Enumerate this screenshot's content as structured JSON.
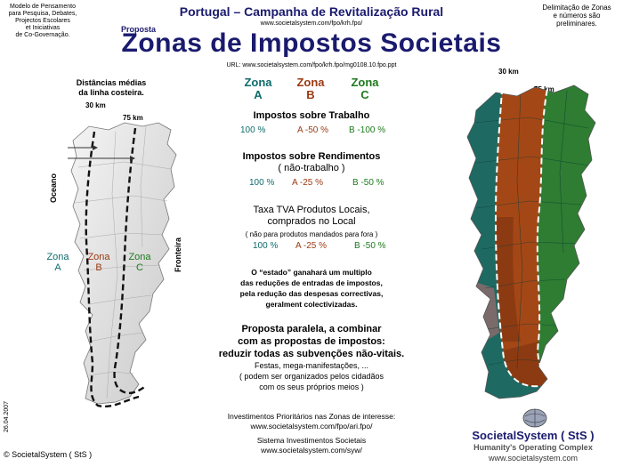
{
  "header": {
    "left_note": [
      "Modelo de Pensamento",
      "para Pesquisa, Debates,",
      "Projectos Escolares",
      "et Iniciativas",
      "de Co-Governação."
    ],
    "supertitle": "Portugal – Campanha de Revitalização Rural",
    "url_top": "www.societalsystem.com/fpo/krh.fpo/",
    "proposta": "Proposta",
    "title": "Zonas de Impostos Societais",
    "url_line": "URL: www.societalsystem.com/fpo/krh.fpo/mg0108.10.fpo.ppt",
    "right_note": [
      "Delimitação de Zonas",
      "e números são",
      "preliminares."
    ]
  },
  "left_map": {
    "caption": [
      "Distâncias médias",
      "da linha costeira."
    ],
    "km30": "30 km",
    "km75": "75 km",
    "ocean": "Oceano",
    "border": "Fronteira",
    "zones": [
      {
        "word": "Zona",
        "letter": "A"
      },
      {
        "word": "Zona",
        "letter": "B"
      },
      {
        "word": "Zona",
        "letter": "C"
      }
    ],
    "date": "26.04.2007"
  },
  "center": {
    "zone_headers": [
      {
        "word": "Zona",
        "letter": "A"
      },
      {
        "word": "Zona",
        "letter": "B"
      },
      {
        "word": "Zona",
        "letter": "C"
      }
    ],
    "sec1_title": "Impostos sobre Trabalho",
    "sec1_values": [
      "100 %",
      "A -50 %",
      "B -100 %"
    ],
    "sec2_title": [
      "Impostos sobre Rendimentos",
      "( não-trabalho )"
    ],
    "sec2_values": [
      "100 %",
      "A -25 %",
      "B -50 %"
    ],
    "sec3_title": [
      "Taxa TVA Produtos Locais,",
      "comprados no Local"
    ],
    "sec3_note": "( não para produtos mandados para fora )",
    "sec3_values": [
      "100 %",
      "A -25 %",
      "B -50 %"
    ],
    "estado": [
      "O “estado” ganahará um multiplo",
      "das reduções de entradas de impostos,",
      "pela redução das despesas correctivas,",
      "geralment colectivizadas."
    ],
    "proposal": [
      "Proposta paralela, a combinar",
      "com as propostas de impostos:",
      "reduzir todas as subvenções não-vitais."
    ],
    "proposal_sub": [
      "Festas, mega-manifestações, ...",
      "( podem ser organizados pelos cidadãos",
      "com os seus próprios meios )"
    ],
    "invest": [
      "Investimentos Prioritários nas Zonas de interesse:",
      "www.societalsystem.com/fpo/ari.fpo/"
    ],
    "system": [
      "Sistema Investimentos Societais",
      "www.societalsystem.com/syw/"
    ]
  },
  "right_map": {
    "km30": "30 km",
    "km75": "75 km"
  },
  "footer": {
    "copyright": "© SocietalSystem ( StS )",
    "brand": "SocietalSystem ( StS )",
    "tagline": "Humanity's Operating Complex",
    "url": "www.societalsystem.com"
  },
  "colors": {
    "zone_a": "#0f6b6b",
    "zone_b": "#9a3a12",
    "zone_c": "#1c7a1c",
    "navy": "#1a1a6e"
  }
}
